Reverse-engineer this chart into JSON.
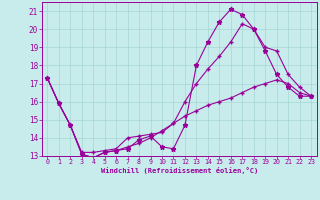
{
  "xlabel": "Windchill (Refroidissement éolien,°C)",
  "background_color": "#c8ecec",
  "line_color": "#990099",
  "xlim": [
    -0.5,
    23.5
  ],
  "ylim": [
    13,
    21.5
  ],
  "xticks": [
    0,
    1,
    2,
    3,
    4,
    5,
    6,
    7,
    8,
    9,
    10,
    11,
    12,
    13,
    14,
    15,
    16,
    17,
    18,
    19,
    20,
    21,
    22,
    23
  ],
  "yticks": [
    13,
    14,
    15,
    16,
    17,
    18,
    19,
    20,
    21
  ],
  "series1_x": [
    0,
    1,
    2,
    3,
    4,
    5,
    6,
    7,
    8,
    9,
    10,
    11,
    12,
    13,
    14,
    15,
    16,
    17,
    18,
    19,
    20,
    21,
    22,
    23
  ],
  "series1_y": [
    17.3,
    15.9,
    14.7,
    13.1,
    12.9,
    13.2,
    13.3,
    13.4,
    13.9,
    14.1,
    13.5,
    13.4,
    14.7,
    18.0,
    19.3,
    20.4,
    21.1,
    20.8,
    20.0,
    18.8,
    17.5,
    16.8,
    16.3,
    16.3
  ],
  "series2_x": [
    0,
    1,
    2,
    3,
    4,
    5,
    6,
    7,
    8,
    9,
    10,
    11,
    12,
    13,
    14,
    15,
    16,
    17,
    18,
    19,
    20,
    21,
    22,
    23
  ],
  "series2_y": [
    17.3,
    15.9,
    14.7,
    13.2,
    13.2,
    13.3,
    13.4,
    14.0,
    14.1,
    14.2,
    14.3,
    14.8,
    16.0,
    17.0,
    17.8,
    18.5,
    19.3,
    20.3,
    20.0,
    19.0,
    18.8,
    17.5,
    16.8,
    16.3
  ],
  "series3_x": [
    0,
    1,
    2,
    3,
    4,
    5,
    6,
    7,
    8,
    9,
    10,
    11,
    12,
    13,
    14,
    15,
    16,
    17,
    18,
    19,
    20,
    21,
    22,
    23
  ],
  "series3_y": [
    17.3,
    15.9,
    14.7,
    13.1,
    12.9,
    13.2,
    13.3,
    13.5,
    13.7,
    14.0,
    14.4,
    14.8,
    15.2,
    15.5,
    15.8,
    16.0,
    16.2,
    16.5,
    16.8,
    17.0,
    17.2,
    17.0,
    16.5,
    16.3
  ]
}
